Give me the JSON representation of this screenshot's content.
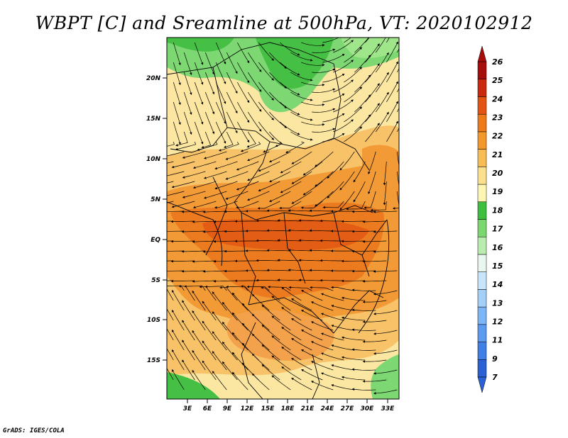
{
  "title": "WBPT [C] and Sreamline at 500hPa, VT: 2020102912",
  "credit": "GrADS: IGES/COLA",
  "map": {
    "lat_ticks": [
      "20N",
      "15N",
      "10N",
      "5N",
      "EQ",
      "5S",
      "10S",
      "15S"
    ],
    "lon_ticks": [
      "3E",
      "6E",
      "9E",
      "12E",
      "15E",
      "18E",
      "21E",
      "24E",
      "27E",
      "30E",
      "33E"
    ]
  },
  "colorbar": {
    "labels": [
      "7",
      "9",
      "11",
      "12",
      "13",
      "14",
      "15",
      "16",
      "17",
      "18",
      "19",
      "20",
      "21",
      "22",
      "23",
      "24",
      "25",
      "26"
    ],
    "colors": [
      "#2a62d6",
      "#3f7fe6",
      "#5b9bf0",
      "#7db6f6",
      "#a3cff9",
      "#c9e5fc",
      "#e8f8ee",
      "#b9ecae",
      "#7ad86f",
      "#3fbf3f",
      "#fff6b4",
      "#fbe08d",
      "#f7bc54",
      "#f3982b",
      "#ef7a1a",
      "#e45412",
      "#cc2a10",
      "#a60e0b"
    ]
  }
}
